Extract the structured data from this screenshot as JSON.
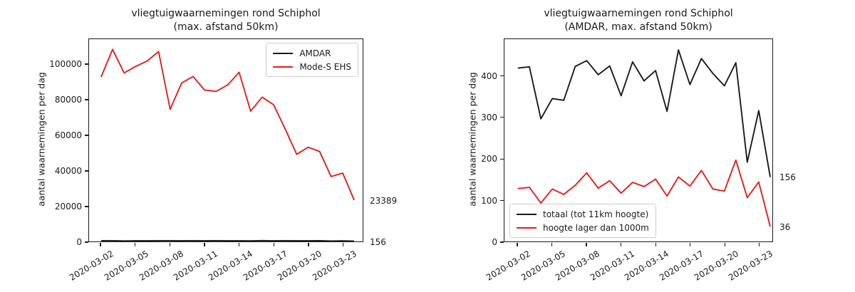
{
  "background_color": "#ffffff",
  "text_color": "#1a1a1a",
  "accent_red": "#e51d1d",
  "accent_black": "#1a1a1a",
  "chart_data": [
    {
      "type": "line",
      "title_line1": "vliegtuigwaarnemingen rond Schiphol",
      "title_line2": "(max. afstand 50km)",
      "ylabel": "aantal waarnemingen per dag",
      "x_tick_labels": [
        "2020-03-02",
        "2020-03-05",
        "2020-03-08",
        "2020-03-11",
        "2020-03-14",
        "2020-03-17",
        "2020-03-20",
        "2020-03-23"
      ],
      "x_tick_positions": [
        0,
        3,
        6,
        9,
        12,
        15,
        18,
        21
      ],
      "ylim": [
        0,
        114400
      ],
      "yticks": [
        0,
        20000,
        40000,
        60000,
        80000,
        100000
      ],
      "grid": false,
      "legend_position": "top-right",
      "series": [
        {
          "name": "AMDAR",
          "color": "#1a1a1a",
          "end_label": "156",
          "values": [
            420,
            423,
            297,
            346,
            342,
            424,
            438,
            404,
            425,
            353,
            435,
            389,
            414,
            315,
            464,
            380,
            443,
            407,
            377,
            433,
            192,
            317,
            156
          ]
        },
        {
          "name": "Mode-S EHS",
          "color": "#e51d1d",
          "end_label": "23389",
          "values": [
            93000,
            108600,
            95300,
            99000,
            102000,
            107400,
            74700,
            89600,
            93300,
            85600,
            84900,
            88500,
            95700,
            73700,
            81600,
            77300,
            63700,
            49300,
            53300,
            50900,
            36700,
            38700,
            23389
          ]
        }
      ]
    },
    {
      "type": "line",
      "title_line1": "vliegtuigwaarnemingen rond Schiphol",
      "title_line2": "(AMDAR, max. afstand 50km)",
      "ylabel": "aantal waarnemingen per dag",
      "x_tick_labels": [
        "2020-03-02",
        "2020-03-05",
        "2020-03-08",
        "2020-03-11",
        "2020-03-14",
        "2020-03-17",
        "2020-03-20",
        "2020-03-23"
      ],
      "x_tick_positions": [
        0,
        3,
        6,
        9,
        12,
        15,
        18,
        21
      ],
      "ylim": [
        0,
        490
      ],
      "yticks": [
        0,
        100,
        200,
        300,
        400
      ],
      "grid": false,
      "legend_position": "bottom-left",
      "series": [
        {
          "name": "totaal (tot 11km hoogte)",
          "color": "#1a1a1a",
          "end_label": "156",
          "values": [
            420,
            423,
            297,
            346,
            342,
            424,
            438,
            404,
            425,
            353,
            435,
            389,
            414,
            315,
            464,
            380,
            443,
            407,
            377,
            433,
            192,
            317,
            156
          ]
        },
        {
          "name": "hoogte lager dan 1000m",
          "color": "#e51d1d",
          "end_label": "36",
          "values": [
            128,
            131,
            93,
            127,
            114,
            136,
            166,
            129,
            147,
            117,
            143,
            133,
            151,
            110,
            156,
            134,
            172,
            127,
            122,
            197,
            106,
            144,
            36
          ]
        }
      ]
    }
  ]
}
